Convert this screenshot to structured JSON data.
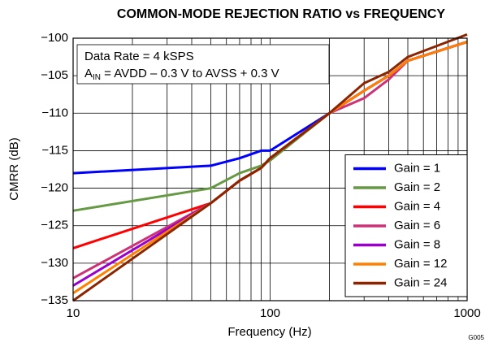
{
  "chart_data": {
    "type": "line",
    "title": "COMMON-MODE REJECTION RATIO vs FREQUENCY",
    "xlabel": "Frequency (Hz)",
    "ylabel": "CMRR (dB)",
    "annotation": {
      "line1": "Data Rate = 4 kSPS",
      "prefix": "A",
      "sub": "IN",
      "rest": " = AVDD – 0.3 V to AVSS + 0.3 V"
    },
    "figure_id": "G005",
    "xscale": "log",
    "grid": true,
    "legend": "lower right",
    "xlim": [
      10,
      1000
    ],
    "xticks": [
      10,
      100,
      1000
    ],
    "xminor": [
      20,
      30,
      40,
      50,
      60,
      70,
      80,
      90,
      200,
      300,
      400,
      500,
      600,
      700,
      800,
      900
    ],
    "ylim": [
      -135,
      -100
    ],
    "yticks": [
      {
        "value": -100,
        "label": "−100"
      },
      {
        "value": -105,
        "label": "−105"
      },
      {
        "value": -110,
        "label": "−110"
      },
      {
        "value": -115,
        "label": "−115"
      },
      {
        "value": -120,
        "label": "−120"
      },
      {
        "value": -125,
        "label": "−125"
      },
      {
        "value": -130,
        "label": "−130"
      },
      {
        "value": -135,
        "label": "−135"
      }
    ],
    "x": [
      10,
      50,
      70,
      90,
      100,
      200,
      300,
      400,
      500,
      1000
    ],
    "series": [
      {
        "name": "Gain = 1",
        "color": "#0000ff",
        "values": [
          -118,
          -117,
          -116,
          -115,
          -115,
          -110,
          -107,
          -105,
          -103,
          -100.5
        ]
      },
      {
        "name": "Gain = 2",
        "color": "#669944",
        "values": [
          -123,
          -120,
          -118,
          -117,
          -116.3,
          -110,
          -107,
          -105,
          -103,
          -100.5
        ]
      },
      {
        "name": "Gain = 4",
        "color": "#ff0000",
        "values": [
          -128,
          -122,
          -119,
          -117.3,
          -116,
          -110,
          -107,
          -105,
          -103,
          -100.5
        ]
      },
      {
        "name": "Gain = 6",
        "color": "#cc3377",
        "values": [
          -132,
          -122,
          -119,
          -117.3,
          -116,
          -110,
          -108,
          -105.5,
          -103,
          -100.5
        ]
      },
      {
        "name": "Gain = 8",
        "color": "#9900cc",
        "values": [
          -133,
          -122,
          -119,
          -117.3,
          -116,
          -110,
          -107,
          -105,
          -103,
          -100.5
        ]
      },
      {
        "name": "Gain = 12",
        "color": "#ff8000",
        "values": [
          -134,
          -122,
          -119,
          -117.3,
          -116,
          -110,
          -107,
          -105,
          -103,
          -100.5
        ]
      },
      {
        "name": "Gain = 24",
        "color": "#8b2500",
        "values": [
          -135,
          -122,
          -119,
          -117.3,
          -116,
          -110,
          -106,
          -104.5,
          -102.5,
          -99.5
        ]
      }
    ]
  }
}
